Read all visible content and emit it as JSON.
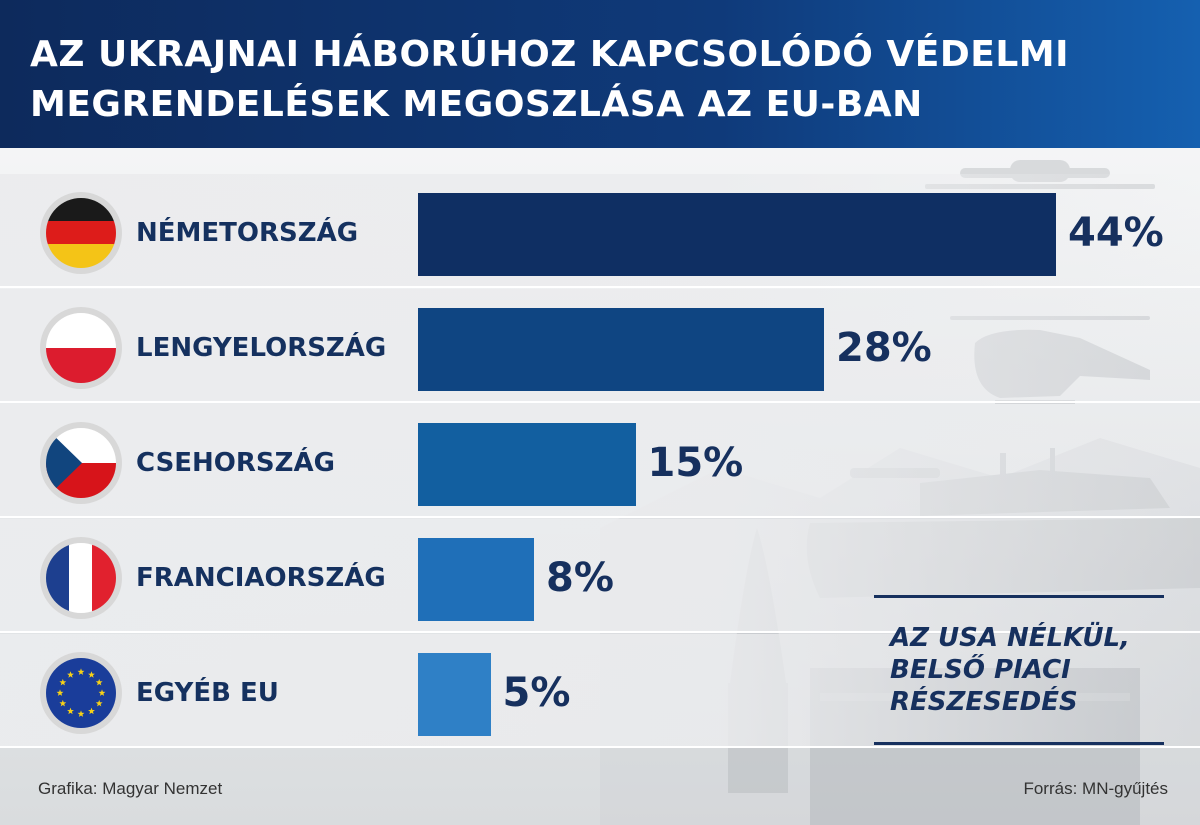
{
  "header": {
    "title_line1": "AZ UKRAJNAI HÁBORÚHOZ KAPCSOLÓDÓ VÉDELMI",
    "title_line2": "MEGRENDELÉSEK MEGOSZLÁSA AZ EU-BAN"
  },
  "chart_data": {
    "type": "bar",
    "orientation": "horizontal",
    "title": "AZ UKRAJNAI HÁBORÚHOZ KAPCSOLÓDÓ VÉDELMI MEGRENDELÉSEK MEGOSZLÁSA AZ EU-BAN",
    "categories": [
      "NÉMETORSZÁG",
      "LENGYELORSZÁG",
      "CSEHORSZÁG",
      "FRANCIAORSZÁG",
      "EGYÉB EU"
    ],
    "values": [
      44,
      28,
      15,
      8,
      5
    ],
    "value_labels": [
      "44%",
      "28%",
      "15%",
      "8%",
      "5%"
    ],
    "bar_colors": [
      "#0f2f63",
      "#0f4582",
      "#125fa0",
      "#1f6fb8",
      "#2f80c6"
    ],
    "flags": [
      "germany-flag",
      "poland-flag",
      "czechia-flag",
      "france-flag",
      "eu-flag"
    ],
    "unit": "%",
    "grid": false,
    "legend": "none"
  },
  "note": {
    "lines": [
      "AZ USA NÉLKÜL,",
      "BELSŐ PIACI",
      "RÉSZESEDÉS"
    ]
  },
  "footer": {
    "graphic_credit": "Grafika: Magyar Nemzet",
    "source": "Forrás: MN-gyűjtés"
  }
}
